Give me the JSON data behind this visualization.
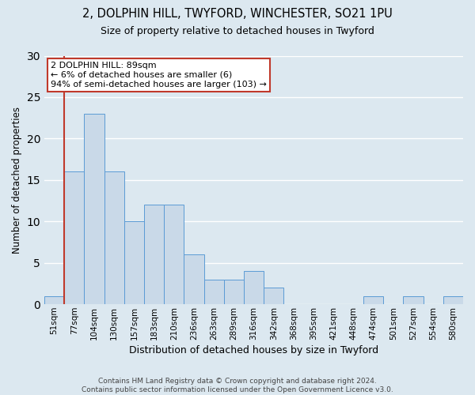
{
  "title_line1": "2, DOLPHIN HILL, TWYFORD, WINCHESTER, SO21 1PU",
  "title_line2": "Size of property relative to detached houses in Twyford",
  "xlabel": "Distribution of detached houses by size in Twyford",
  "ylabel": "Number of detached properties",
  "categories": [
    "51sqm",
    "77sqm",
    "104sqm",
    "130sqm",
    "157sqm",
    "183sqm",
    "210sqm",
    "236sqm",
    "263sqm",
    "289sqm",
    "316sqm",
    "342sqm",
    "368sqm",
    "395sqm",
    "421sqm",
    "448sqm",
    "474sqm",
    "501sqm",
    "527sqm",
    "554sqm",
    "580sqm"
  ],
  "values": [
    1,
    16,
    23,
    16,
    10,
    12,
    12,
    6,
    3,
    3,
    4,
    2,
    0,
    0,
    0,
    0,
    1,
    0,
    1,
    0,
    1
  ],
  "bar_color": "#c9d9e8",
  "bar_edge_color": "#5b9bd5",
  "highlight_line_color": "#c0392b",
  "highlight_line_index": 1,
  "ylim": [
    0,
    30
  ],
  "yticks": [
    0,
    5,
    10,
    15,
    20,
    25,
    30
  ],
  "annotation_text": "2 DOLPHIN HILL: 89sqm\n← 6% of detached houses are smaller (6)\n94% of semi-detached houses are larger (103) →",
  "annotation_box_color": "#ffffff",
  "annotation_box_edge": "#c0392b",
  "footer_text": "Contains HM Land Registry data © Crown copyright and database right 2024.\nContains public sector information licensed under the Open Government Licence v3.0.",
  "bg_color": "#dce8f0",
  "grid_color": "#ffffff"
}
